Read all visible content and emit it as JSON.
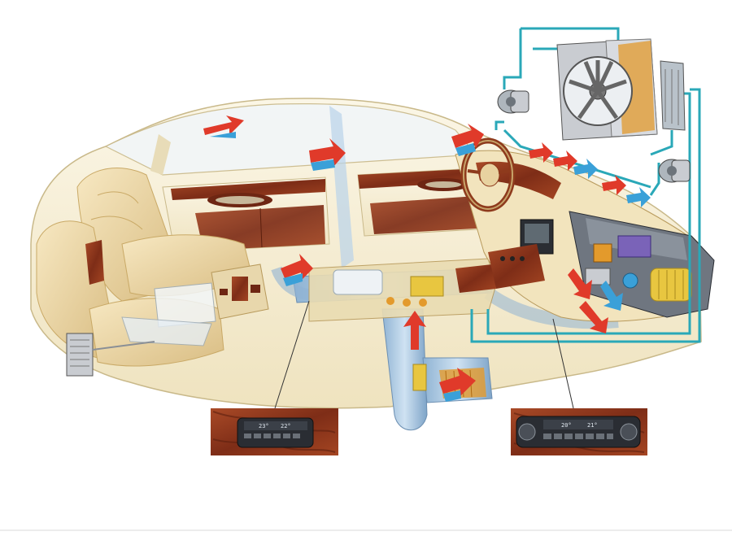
{
  "illustration": {
    "subject": "car-climate-control-cutaway",
    "colors": {
      "background": "#ffffff",
      "car_body": "#f6eed6",
      "car_outline": "#c9b98a",
      "leather": "#efdcae",
      "leather_shadow": "#d9bd83",
      "wood_trim": "#9a3f22",
      "wood_dark": "#6e2613",
      "glass": "#f2f6f8",
      "duct_blue": "#7fa6c9",
      "duct_light": "#b9d3ea",
      "coolant_line": "#2aa8b8",
      "arrow_warm": "#e03a2a",
      "arrow_cool": "#3aa0d8",
      "module_orange": "#e39a2c",
      "module_yellow": "#e8c640",
      "control_panel_bg": "#2a2d33",
      "leader_line": "#333333"
    }
  },
  "rear_control_panel": {
    "left_temp": "23°",
    "right_temp": "22°"
  },
  "front_control_panel": {
    "left_temp": "20°",
    "right_temp": "21°"
  }
}
